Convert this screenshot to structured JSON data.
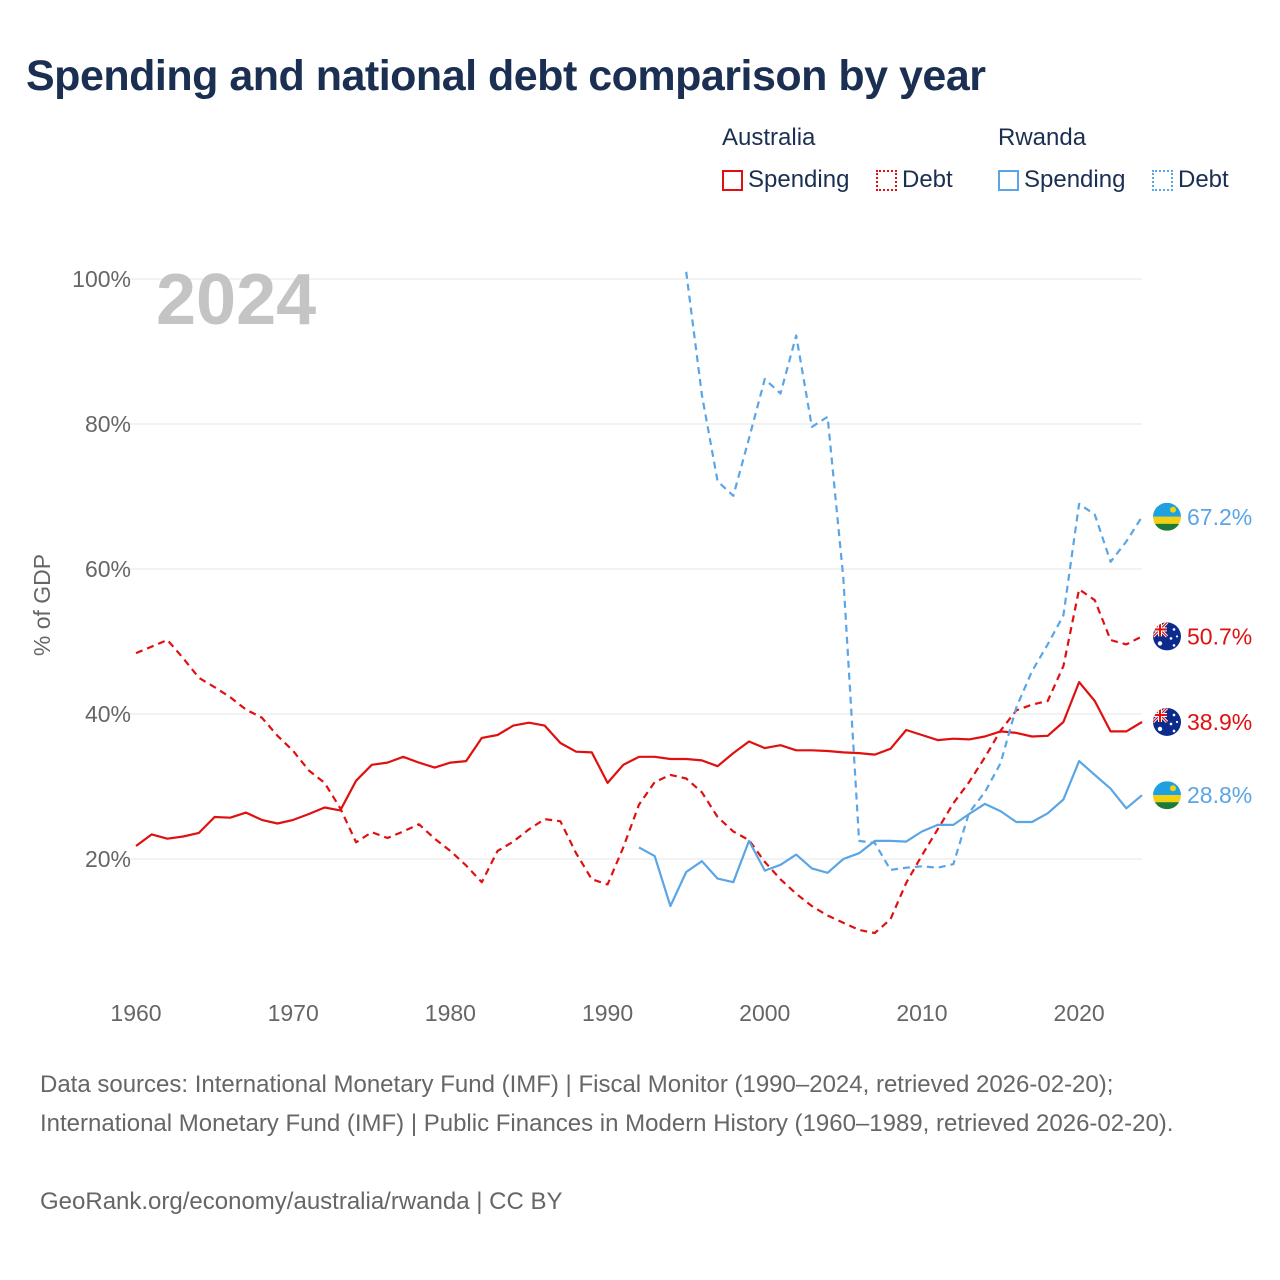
{
  "title": "Spending and national debt comparison by year",
  "legend": {
    "groups": [
      {
        "country": "Australia",
        "items": [
          {
            "label": "Spending",
            "style": "solid",
            "color": "#e01010"
          },
          {
            "label": "Debt",
            "style": "dotted",
            "color": "#e01010"
          }
        ]
      },
      {
        "country": "Rwanda",
        "items": [
          {
            "label": "Spending",
            "style": "solid",
            "color": "#5aa5e6"
          },
          {
            "label": "Debt",
            "style": "dotted",
            "color": "#5aa5e6"
          }
        ]
      }
    ]
  },
  "chart_data": {
    "type": "line",
    "title": "Spending and national debt comparison by year",
    "year_label": "2024",
    "ylabel": "% of GDP",
    "xlabel": "",
    "xlim": [
      1960,
      2024
    ],
    "ylim": [
      0,
      100
    ],
    "x_ticks": [
      1960,
      1970,
      1980,
      1990,
      2000,
      2010,
      2020
    ],
    "y_ticks": [
      {
        "value": 20,
        "label": "20%"
      },
      {
        "value": 40,
        "label": "40%"
      },
      {
        "value": 60,
        "label": "60%"
      },
      {
        "value": 80,
        "label": "80%"
      },
      {
        "value": 100,
        "label": "100%"
      }
    ],
    "grid": true,
    "series": [
      {
        "name": "Australia Spending",
        "color": "#e01010",
        "style": "solid",
        "flag": "australia",
        "end_label": "38.9%",
        "points": [
          [
            1960,
            21.8
          ],
          [
            1961,
            23.4
          ],
          [
            1962,
            22.8
          ],
          [
            1963,
            23.1
          ],
          [
            1964,
            23.6
          ],
          [
            1965,
            25.8
          ],
          [
            1966,
            25.7
          ],
          [
            1967,
            26.4
          ],
          [
            1968,
            25.4
          ],
          [
            1969,
            24.9
          ],
          [
            1970,
            25.4
          ],
          [
            1971,
            26.2
          ],
          [
            1972,
            27.1
          ],
          [
            1973,
            26.7
          ],
          [
            1974,
            30.8
          ],
          [
            1975,
            33.0
          ],
          [
            1976,
            33.3
          ],
          [
            1977,
            34.1
          ],
          [
            1978,
            33.3
          ],
          [
            1979,
            32.6
          ],
          [
            1980,
            33.3
          ],
          [
            1981,
            33.5
          ],
          [
            1982,
            36.7
          ],
          [
            1983,
            37.1
          ],
          [
            1984,
            38.4
          ],
          [
            1985,
            38.8
          ],
          [
            1986,
            38.4
          ],
          [
            1987,
            36.0
          ],
          [
            1988,
            34.8
          ],
          [
            1989,
            34.7
          ],
          [
            1990,
            30.5
          ],
          [
            1991,
            33.0
          ],
          [
            1992,
            34.1
          ],
          [
            1993,
            34.1
          ],
          [
            1994,
            33.8
          ],
          [
            1995,
            33.8
          ],
          [
            1996,
            33.6
          ],
          [
            1997,
            32.8
          ],
          [
            1998,
            34.6
          ],
          [
            1999,
            36.2
          ],
          [
            2000,
            35.3
          ],
          [
            2001,
            35.7
          ],
          [
            2002,
            35.0
          ],
          [
            2003,
            35.0
          ],
          [
            2004,
            34.9
          ],
          [
            2005,
            34.7
          ],
          [
            2006,
            34.6
          ],
          [
            2007,
            34.4
          ],
          [
            2008,
            35.2
          ],
          [
            2009,
            37.8
          ],
          [
            2010,
            37.1
          ],
          [
            2011,
            36.4
          ],
          [
            2012,
            36.6
          ],
          [
            2013,
            36.5
          ],
          [
            2014,
            36.9
          ],
          [
            2015,
            37.6
          ],
          [
            2016,
            37.4
          ],
          [
            2017,
            36.9
          ],
          [
            2018,
            37.0
          ],
          [
            2019,
            38.9
          ],
          [
            2020,
            44.4
          ],
          [
            2021,
            41.8
          ],
          [
            2022,
            37.6
          ],
          [
            2023,
            37.6
          ],
          [
            2024,
            38.9
          ]
        ]
      },
      {
        "name": "Australia Debt",
        "color": "#e01010",
        "style": "dashed",
        "flag": "australia",
        "end_label": "50.7%",
        "points": [
          [
            1960,
            48.4
          ],
          [
            1961,
            49.3
          ],
          [
            1962,
            50.2
          ],
          [
            1963,
            47.7
          ],
          [
            1964,
            45.0
          ],
          [
            1965,
            43.7
          ],
          [
            1966,
            42.3
          ],
          [
            1967,
            40.6
          ],
          [
            1968,
            39.5
          ],
          [
            1969,
            37.0
          ],
          [
            1970,
            34.9
          ],
          [
            1971,
            32.2
          ],
          [
            1972,
            30.5
          ],
          [
            1973,
            27.0
          ],
          [
            1974,
            22.3
          ],
          [
            1975,
            23.7
          ],
          [
            1976,
            22.9
          ],
          [
            1977,
            23.8
          ],
          [
            1978,
            24.8
          ],
          [
            1979,
            22.8
          ],
          [
            1980,
            21.1
          ],
          [
            1981,
            19.1
          ],
          [
            1982,
            16.8
          ],
          [
            1983,
            21.1
          ],
          [
            1984,
            22.4
          ],
          [
            1985,
            24.1
          ],
          [
            1986,
            25.5
          ],
          [
            1987,
            25.2
          ],
          [
            1988,
            20.8
          ],
          [
            1989,
            17.2
          ],
          [
            1990,
            16.5
          ],
          [
            1991,
            21.6
          ],
          [
            1992,
            27.5
          ],
          [
            1993,
            30.6
          ],
          [
            1994,
            31.6
          ],
          [
            1995,
            31.1
          ],
          [
            1996,
            29.2
          ],
          [
            1997,
            25.8
          ],
          [
            1998,
            23.8
          ],
          [
            1999,
            22.6
          ],
          [
            2000,
            19.6
          ],
          [
            2001,
            17.2
          ],
          [
            2002,
            15.2
          ],
          [
            2003,
            13.5
          ],
          [
            2004,
            12.2
          ],
          [
            2005,
            11.2
          ],
          [
            2006,
            10.2
          ],
          [
            2007,
            9.8
          ],
          [
            2008,
            11.7
          ],
          [
            2009,
            16.7
          ],
          [
            2010,
            20.5
          ],
          [
            2011,
            24.1
          ],
          [
            2012,
            27.7
          ],
          [
            2013,
            30.6
          ],
          [
            2014,
            34.0
          ],
          [
            2015,
            37.7
          ],
          [
            2016,
            40.5
          ],
          [
            2017,
            41.3
          ],
          [
            2018,
            41.8
          ],
          [
            2019,
            46.6
          ],
          [
            2020,
            57.2
          ],
          [
            2021,
            55.7
          ],
          [
            2022,
            50.2
          ],
          [
            2023,
            49.6
          ],
          [
            2024,
            50.7
          ]
        ]
      },
      {
        "name": "Rwanda Spending",
        "color": "#5aa5e6",
        "style": "solid",
        "flag": "rwanda",
        "end_label": "28.8%",
        "points": [
          [
            1992,
            21.6
          ],
          [
            1993,
            20.4
          ],
          [
            1994,
            13.5
          ],
          [
            1995,
            18.2
          ],
          [
            1996,
            19.7
          ],
          [
            1997,
            17.3
          ],
          [
            1998,
            16.8
          ],
          [
            1999,
            22.5
          ],
          [
            2000,
            18.4
          ],
          [
            2001,
            19.2
          ],
          [
            2002,
            20.6
          ],
          [
            2003,
            18.7
          ],
          [
            2004,
            18.1
          ],
          [
            2005,
            20.0
          ],
          [
            2006,
            20.8
          ],
          [
            2007,
            22.5
          ],
          [
            2008,
            22.5
          ],
          [
            2009,
            22.4
          ],
          [
            2010,
            23.8
          ],
          [
            2011,
            24.7
          ],
          [
            2012,
            24.7
          ],
          [
            2013,
            26.2
          ],
          [
            2014,
            27.6
          ],
          [
            2015,
            26.6
          ],
          [
            2016,
            25.1
          ],
          [
            2017,
            25.1
          ],
          [
            2018,
            26.3
          ],
          [
            2019,
            28.2
          ],
          [
            2020,
            33.5
          ],
          [
            2021,
            31.6
          ],
          [
            2022,
            29.7
          ],
          [
            2023,
            27.0
          ],
          [
            2024,
            28.8
          ]
        ]
      },
      {
        "name": "Rwanda Debt",
        "color": "#5aa5e6",
        "style": "dashed",
        "flag": "rwanda",
        "end_label": "67.2%",
        "points": [
          [
            1995,
            101.0
          ],
          [
            1996,
            84.0
          ],
          [
            1997,
            72.1
          ],
          [
            1998,
            70.1
          ],
          [
            1999,
            78.0
          ],
          [
            2000,
            86.2
          ],
          [
            2001,
            84.2
          ],
          [
            2002,
            92.2
          ],
          [
            2003,
            79.6
          ],
          [
            2004,
            81.0
          ],
          [
            2005,
            58.8
          ],
          [
            2006,
            22.5
          ],
          [
            2007,
            22.2
          ],
          [
            2008,
            18.5
          ],
          [
            2009,
            18.8
          ],
          [
            2010,
            19.0
          ],
          [
            2011,
            18.8
          ],
          [
            2012,
            19.3
          ],
          [
            2013,
            26.4
          ],
          [
            2014,
            29.2
          ],
          [
            2015,
            33.2
          ],
          [
            2016,
            40.9
          ],
          [
            2017,
            45.9
          ],
          [
            2018,
            49.6
          ],
          [
            2019,
            53.6
          ],
          [
            2020,
            69.0
          ],
          [
            2021,
            67.5
          ],
          [
            2022,
            61.0
          ],
          [
            2023,
            63.8
          ],
          [
            2024,
            67.2
          ]
        ]
      }
    ]
  },
  "footer": {
    "sources": "Data sources: International Monetary Fund (IMF) | Fiscal Monitor (1990–2024, retrieved 2026-02-20); International Monetary Fund (IMF) | Public Finances in Modern History (1960–1989, retrieved 2026-02-20).",
    "credit": "GeoRank.org/economy/australia/rwanda | CC BY"
  }
}
